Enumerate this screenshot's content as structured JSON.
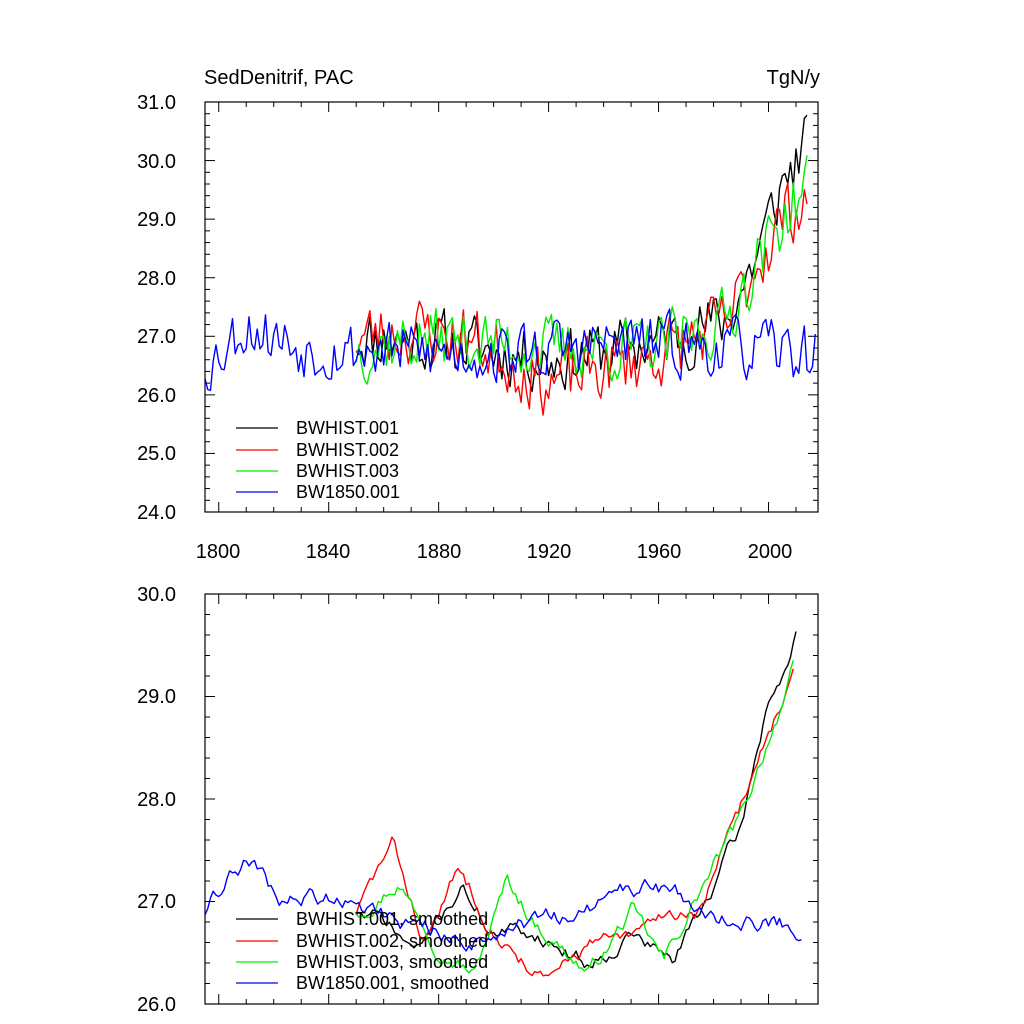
{
  "chart_data": [
    {
      "type": "line",
      "title": "SedDenitrif, PAC",
      "units": "TgN/y",
      "xlim": [
        1795,
        2018
      ],
      "ylim": [
        24.0,
        31.0
      ],
      "x_ticks": [
        1800,
        1840,
        1880,
        1920,
        1960,
        2000
      ],
      "x_tick_labels": [
        "1800",
        "1840",
        "1880",
        "1920",
        "1960",
        "2000"
      ],
      "y_ticks": [
        24.0,
        25.0,
        26.0,
        27.0,
        28.0,
        29.0,
        30.0,
        31.0
      ],
      "y_tick_labels": [
        "24.0",
        "25.0",
        "26.0",
        "27.0",
        "28.0",
        "29.0",
        "30.0",
        "31.0"
      ],
      "legend": "bottom-left",
      "series": [
        {
          "name": "BWHIST.001",
          "color": "#000000",
          "x_start": 1850,
          "x_end": 2014,
          "anchors": [
            [
              1850,
              27.0
            ],
            [
              1880,
              26.9
            ],
            [
              1920,
              26.6
            ],
            [
              1960,
              26.9
            ],
            [
              1985,
              27.3
            ],
            [
              1995,
              28.3
            ],
            [
              2005,
              29.6
            ],
            [
              2014,
              30.3
            ]
          ],
          "noise": 0.75,
          "seed": 11
        },
        {
          "name": "BWHIST.002",
          "color": "#ff0000",
          "x_start": 1850,
          "x_end": 2014,
          "anchors": [
            [
              1850,
              27.0
            ],
            [
              1870,
              27.1
            ],
            [
              1890,
              27.0
            ],
            [
              1920,
              26.2
            ],
            [
              1960,
              26.7
            ],
            [
              1985,
              27.2
            ],
            [
              1995,
              28.2
            ],
            [
              2005,
              29.0
            ],
            [
              2014,
              29.4
            ]
          ],
          "noise": 0.8,
          "seed": 23
        },
        {
          "name": "BWHIST.003",
          "color": "#00ee00",
          "x_start": 1850,
          "x_end": 2014,
          "anchors": [
            [
              1850,
              26.8
            ],
            [
              1880,
              27.0
            ],
            [
              1920,
              26.8
            ],
            [
              1960,
              26.8
            ],
            [
              1985,
              27.3
            ],
            [
              1995,
              28.2
            ],
            [
              2005,
              29.0
            ],
            [
              2014,
              29.6
            ]
          ],
          "noise": 0.75,
          "seed": 37
        },
        {
          "name": "BW1850.001",
          "color": "#0000ff",
          "x_start": 1795,
          "x_end": 2017,
          "anchors": [
            [
              1795,
              26.5
            ],
            [
              1810,
              27.2
            ],
            [
              1830,
              26.8
            ],
            [
              1900,
              26.7
            ],
            [
              1950,
              26.9
            ],
            [
              2017,
              26.7
            ]
          ],
          "noise": 0.7,
          "seed": 53
        }
      ]
    },
    {
      "type": "line",
      "title": "",
      "xlim": [
        1795,
        2018
      ],
      "ylim": [
        26.0,
        30.0
      ],
      "x_ticks": [
        1800,
        1840,
        1880,
        1920,
        1960,
        2000
      ],
      "y_ticks": [
        26.0,
        27.0,
        28.0,
        29.0,
        30.0
      ],
      "y_tick_labels": [
        "26.0",
        "27.0",
        "28.0",
        "29.0",
        "30.0"
      ],
      "legend": "bottom-left",
      "series": [
        {
          "name": "BWHIST.001, smoothed",
          "color": "#000000",
          "x_start": 1850,
          "x_end": 2010,
          "anchors": [
            [
              1850,
              26.9
            ],
            [
              1860,
              26.8
            ],
            [
              1872,
              26.5
            ],
            [
              1888,
              27.15
            ],
            [
              1900,
              26.7
            ],
            [
              1915,
              26.7
            ],
            [
              1935,
              26.4
            ],
            [
              1950,
              26.7
            ],
            [
              1965,
              26.4
            ],
            [
              1975,
              26.9
            ],
            [
              1990,
              27.7
            ],
            [
              2000,
              29.0
            ],
            [
              2005,
              29.2
            ],
            [
              2010,
              29.6
            ]
          ],
          "noise": 0.06,
          "seed": 71
        },
        {
          "name": "BWHIST.002, smoothed",
          "color": "#ff0000",
          "x_start": 1850,
          "x_end": 2009,
          "anchors": [
            [
              1850,
              26.9
            ],
            [
              1863,
              27.55
            ],
            [
              1875,
              26.6
            ],
            [
              1887,
              27.3
            ],
            [
              1905,
              26.6
            ],
            [
              1920,
              26.2
            ],
            [
              1935,
              26.6
            ],
            [
              1950,
              26.6
            ],
            [
              1963,
              26.9
            ],
            [
              1975,
              26.9
            ],
            [
              1990,
              27.9
            ],
            [
              2000,
              28.7
            ],
            [
              2009,
              29.2
            ]
          ],
          "noise": 0.06,
          "seed": 83
        },
        {
          "name": "BWHIST.003, smoothed",
          "color": "#00ee00",
          "x_start": 1850,
          "x_end": 2009,
          "anchors": [
            [
              1850,
              26.9
            ],
            [
              1865,
              27.2
            ],
            [
              1880,
              26.6
            ],
            [
              1893,
              26.3
            ],
            [
              1905,
              27.2
            ],
            [
              1915,
              26.8
            ],
            [
              1935,
              26.3
            ],
            [
              1950,
              26.9
            ],
            [
              1962,
              26.4
            ],
            [
              1975,
              27.1
            ],
            [
              1990,
              27.8
            ],
            [
              2000,
              28.6
            ],
            [
              2009,
              29.25
            ]
          ],
          "noise": 0.06,
          "seed": 97
        },
        {
          "name": "BW1850.001, smoothed",
          "color": "#0000ff",
          "x_start": 1795,
          "x_end": 2012,
          "anchors": [
            [
              1795,
              26.9
            ],
            [
              1797,
              27.1
            ],
            [
              1810,
              27.4
            ],
            [
              1822,
              27.0
            ],
            [
              1845,
              27.05
            ],
            [
              1870,
              26.8
            ],
            [
              1890,
              26.6
            ],
            [
              1910,
              26.8
            ],
            [
              1930,
              26.8
            ],
            [
              1955,
              27.2
            ],
            [
              1975,
              26.9
            ],
            [
              1995,
              26.8
            ],
            [
              2012,
              26.75
            ]
          ],
          "noise": 0.07,
          "seed": 109
        }
      ]
    }
  ]
}
